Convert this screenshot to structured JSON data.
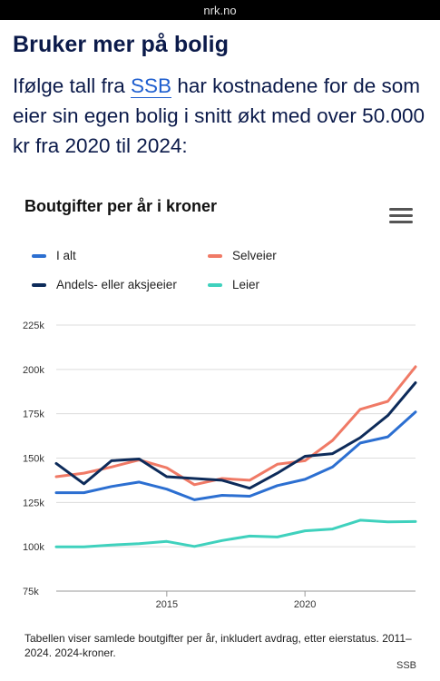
{
  "browser": {
    "url": "nrk.no"
  },
  "article": {
    "headline": "Bruker mer på bolig",
    "intro_before_link": "Ifølge tall fra ",
    "intro_link": "SSB",
    "intro_after_link": " har kostnadene for de som eier sin egen bolig i snitt økt med over 50.000 kr fra 2020 til 2024:"
  },
  "chart": {
    "menu_icon": "hamburger-menu-icon",
    "caption": "Tabellen viser samlede boutgifter per år, inkludert avdrag, etter eierstatus. 2011–2024. 2024-kroner.",
    "source": "SSB"
  },
  "chart_data": {
    "type": "line",
    "title": "Boutgifter per år i kroner",
    "xlabel": "",
    "ylabel": "",
    "x": [
      2011,
      2012,
      2013,
      2014,
      2015,
      2016,
      2017,
      2018,
      2019,
      2020,
      2021,
      2022,
      2023,
      2024
    ],
    "x_ticks": [
      2015,
      2020
    ],
    "x_tick_labels": [
      "2015",
      "2020"
    ],
    "ylim": [
      75000,
      225000
    ],
    "y_ticks": [
      75000,
      100000,
      125000,
      150000,
      175000,
      200000,
      225000
    ],
    "y_tick_labels": [
      "75k",
      "100k",
      "125k",
      "150k",
      "175k",
      "200k",
      "225k"
    ],
    "grid": true,
    "legend_position": "top",
    "series": [
      {
        "name": "I alt",
        "color": "#2c6fd1",
        "values": [
          130500,
          130500,
          134000,
          136500,
          132500,
          126500,
          129000,
          128500,
          134500,
          138000,
          145000,
          158500,
          162000,
          176000
        ]
      },
      {
        "name": "Selveier",
        "color": "#f07a66",
        "values": [
          139500,
          141500,
          145000,
          149000,
          144500,
          135000,
          138500,
          137500,
          146500,
          148500,
          160000,
          177500,
          182000,
          201500
        ]
      },
      {
        "name": "Andels- eller aksjeeier",
        "color": "#0d2b5a",
        "values": [
          147000,
          135500,
          148500,
          149500,
          139500,
          138500,
          137500,
          133000,
          141500,
          151000,
          152500,
          161500,
          174000,
          192500
        ]
      },
      {
        "name": "Leier",
        "color": "#3fd1bd",
        "values": [
          100000,
          100000,
          101000,
          101800,
          103000,
          100200,
          103500,
          106000,
          105500,
          109000,
          110000,
          115000,
          114000,
          114200
        ]
      }
    ]
  }
}
